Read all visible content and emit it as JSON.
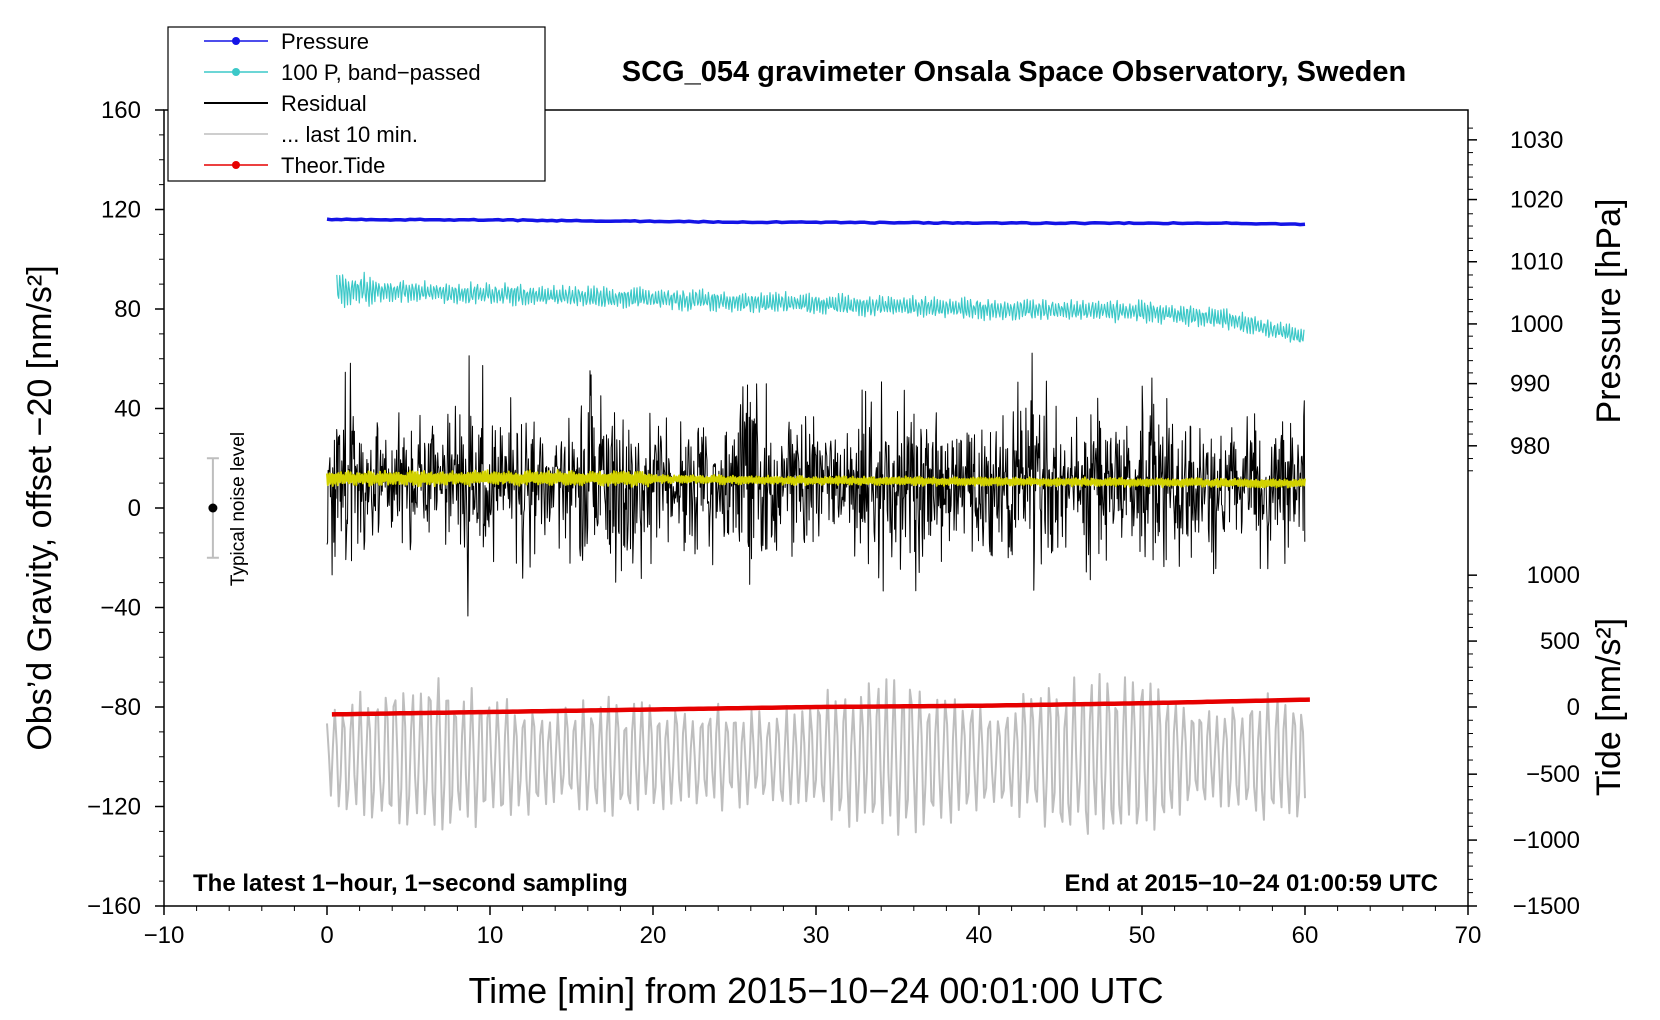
{
  "chart_data": {
    "type": "line",
    "title": "SCG_054 gravimeter Onsala Space Observatory, Sweden",
    "xlabel": "Time [min] from 2015−10−24 00:01:00 UTC",
    "ylabel_left": "Obs’d Gravity, offset −20 [nm/s²]",
    "ylabel_right_pressure": "Pressure [hPa]",
    "ylabel_right_tide": "Tide [nm/s²]",
    "xlim": [
      -10,
      70
    ],
    "ylim": [
      -160,
      160
    ],
    "x_ticks": [
      {
        "value": -10,
        "label": "−10"
      },
      {
        "value": 0,
        "label": "0"
      },
      {
        "value": 10,
        "label": "10"
      },
      {
        "value": 20,
        "label": "20"
      },
      {
        "value": 30,
        "label": "30"
      },
      {
        "value": 40,
        "label": "40"
      },
      {
        "value": 50,
        "label": "50"
      },
      {
        "value": 60,
        "label": "60"
      },
      {
        "value": 70,
        "label": "70"
      }
    ],
    "y_ticks": [
      {
        "value": 160,
        "label": "160"
      },
      {
        "value": 120,
        "label": "120"
      },
      {
        "value": 80,
        "label": "80"
      },
      {
        "value": 40,
        "label": "40"
      },
      {
        "value": 0,
        "label": "0"
      },
      {
        "value": -40,
        "label": "−40"
      },
      {
        "value": -80,
        "label": "−80"
      },
      {
        "value": -120,
        "label": "−120"
      },
      {
        "value": -160,
        "label": "−160"
      }
    ],
    "pressure_axis": {
      "note": "1 hPa = 4 nm/s² on left scale",
      "ticks": [
        {
          "value": 1030,
          "label": "1030",
          "left_equiv": 148
        },
        {
          "value": 1020,
          "label": "1020",
          "left_equiv": 124
        },
        {
          "value": 1010,
          "label": "1010",
          "left_equiv": 99
        },
        {
          "value": 1000,
          "label": "1000",
          "left_equiv": 74
        },
        {
          "value": 990,
          "label": "990",
          "left_equiv": 50
        },
        {
          "value": 980,
          "label": "980",
          "left_equiv": 25
        }
      ]
    },
    "tide_axis": {
      "ticks": [
        {
          "value": 1000,
          "label": "1000",
          "left_equiv": -27
        },
        {
          "value": 500,
          "label": "500",
          "left_equiv": -53.5
        },
        {
          "value": 0,
          "label": "0",
          "left_equiv": -80
        },
        {
          "value": -500,
          "label": "−500",
          "left_equiv": -107
        },
        {
          "value": -1000,
          "label": "−1000",
          "left_equiv": -133.5
        },
        {
          "value": -1500,
          "label": "−1500",
          "left_equiv": -160
        }
      ]
    },
    "series": [
      {
        "name": "Pressure",
        "color": "#1414e6",
        "kind": "trend",
        "x": [
          0,
          10,
          20,
          30,
          40,
          50,
          55,
          60
        ],
        "y": [
          116,
          115.8,
          115.2,
          114.8,
          114.6,
          114.5,
          114.5,
          114
        ]
      },
      {
        "name": "100 P, band−passed",
        "color": "#3cc8c8",
        "kind": "noisy",
        "x": [
          0,
          10,
          20,
          30,
          40,
          50,
          55,
          60
        ],
        "y": [
          88,
          86,
          84,
          82,
          80,
          79,
          76,
          69
        ],
        "amplitude": 4
      },
      {
        "name": "Residual",
        "color": "#000000",
        "kind": "noisy",
        "x": [
          0,
          30,
          60
        ],
        "y": [
          10,
          10,
          10
        ],
        "amplitude": 25
      },
      {
        "name": "... last 10 min.",
        "color": "#bebebe",
        "kind": "oscillation",
        "x": [
          0,
          60
        ],
        "y": [
          -100,
          -100
        ],
        "amplitude": 30
      },
      {
        "name": "Theor.Tide",
        "color": "#e60000",
        "kind": "trend",
        "x": [
          0,
          10,
          20,
          30,
          40,
          50,
          60.5
        ],
        "y": [
          -83,
          -82,
          -81,
          -80,
          -79.5,
          -78.5,
          -77
        ]
      },
      {
        "name": "Residual low-pass",
        "color": "#d2d200",
        "kind": "noisy",
        "x": [
          0,
          15,
          30,
          60
        ],
        "y": [
          12,
          12,
          11,
          10
        ],
        "amplitude": 2
      }
    ],
    "noise_bar": {
      "label": "Typical noise level",
      "x": -7,
      "center": 0,
      "low": -20,
      "high": 20
    },
    "annotations": {
      "bottom_left": "The latest 1−hour, 1−second sampling",
      "bottom_right": "End at 2015−10−24 01:00:59 UTC"
    },
    "legend": {
      "placement": "top-left",
      "entries": [
        {
          "label": "Pressure",
          "color": "#1414e6",
          "marker": true
        },
        {
          "label": "100 P, band−passed",
          "color": "#3cc8c8",
          "marker": true
        },
        {
          "label": "Residual",
          "color": "#000000",
          "marker": false
        },
        {
          "label": "... last 10 min.",
          "color": "#bebebe",
          "marker": false
        },
        {
          "label": "Theor.Tide",
          "color": "#e60000",
          "marker": true
        }
      ]
    }
  }
}
